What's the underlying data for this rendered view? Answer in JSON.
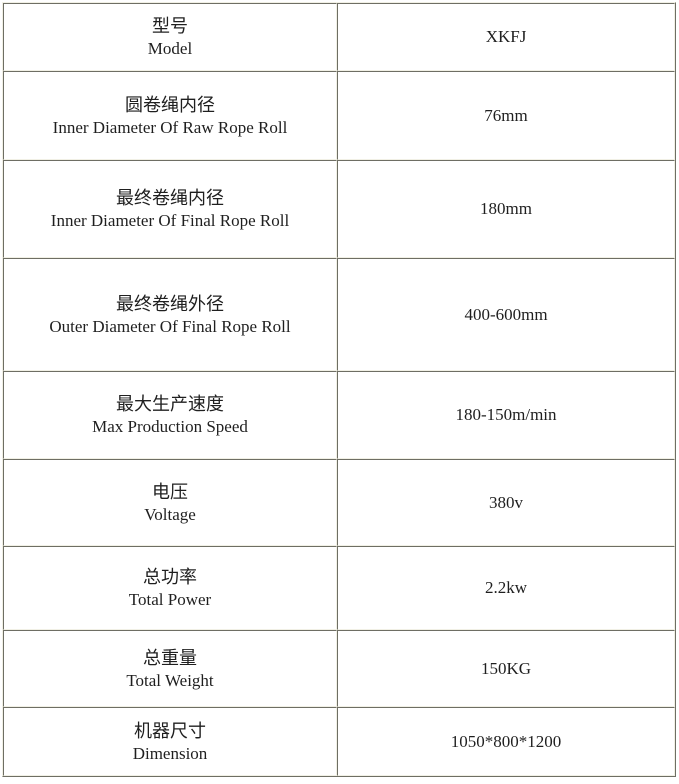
{
  "table": {
    "name": "machine-specification-table",
    "columns": [
      "parameter",
      "value"
    ],
    "rows": [
      {
        "zh": "型号",
        "en": "Model",
        "value": "XKFJ"
      },
      {
        "zh": "圆卷绳内径",
        "en": "Inner Diameter Of Raw Rope Roll",
        "value": "76mm"
      },
      {
        "zh": "最终卷绳内径",
        "en": "Inner Diameter Of Final Rope Roll",
        "value": "180mm"
      },
      {
        "zh": "最终卷绳外径",
        "en": "Outer Diameter Of Final Rope Roll",
        "value": "400-600mm"
      },
      {
        "zh": "最大生产速度",
        "en": "Max Production Speed",
        "value": "180-150m/min"
      },
      {
        "zh": "电压",
        "en": "Voltage",
        "value": "380v"
      },
      {
        "zh": "总功率",
        "en": "Total Power",
        "value": "2.2kw"
      },
      {
        "zh": "总重量",
        "en": "Total Weight",
        "value": "150KG"
      },
      {
        "zh": "机器尺寸",
        "en": "Dimension",
        "value": "1050*800*1200"
      }
    ],
    "colors": {
      "border_dark": "#6e6e64",
      "border_light": "#f1f0e5",
      "background": "#ffffff",
      "text": "#1f1f1f"
    }
  }
}
